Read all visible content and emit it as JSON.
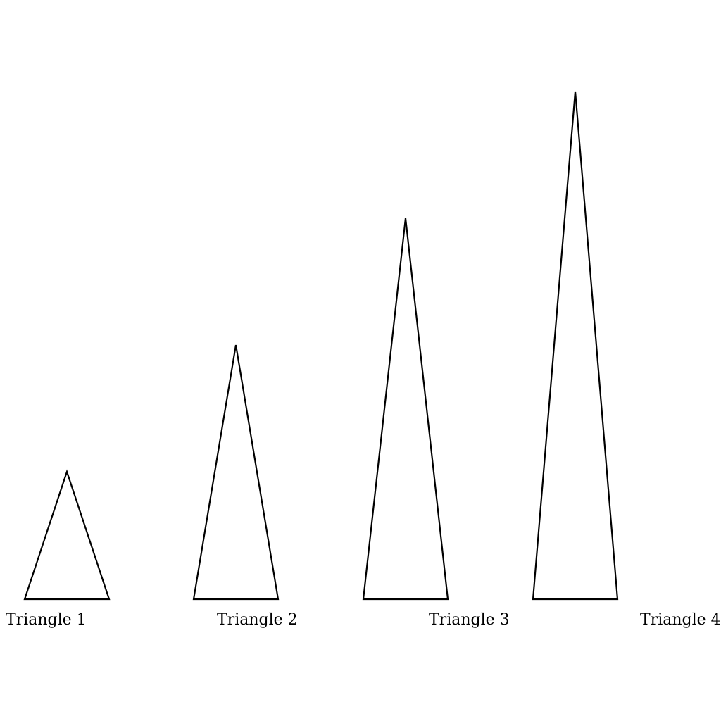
{
  "diagram": {
    "triangles": [
      {
        "label": "Triangle 1",
        "relative_height": 1
      },
      {
        "label": "Triangle 2",
        "relative_height": 2
      },
      {
        "label": "Triangle 3",
        "relative_height": 3
      },
      {
        "label": "Triangle 4",
        "relative_height": 4
      }
    ]
  }
}
